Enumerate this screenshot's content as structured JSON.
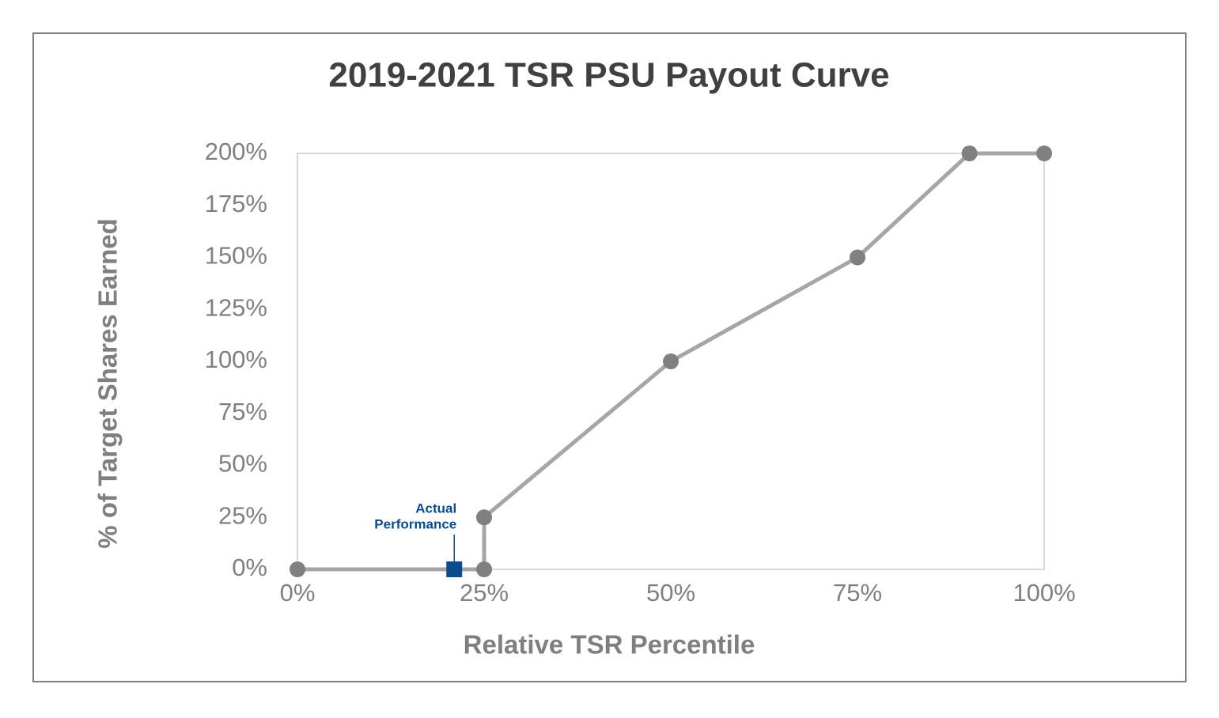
{
  "chart_data": {
    "type": "line",
    "title": "2019-2021 TSR PSU Payout Curve",
    "xlabel": "Relative TSR Percentile",
    "ylabel": "% of Target Shares Earned",
    "xlim": [
      0,
      100
    ],
    "ylim": [
      0,
      200
    ],
    "xticks": [
      {
        "value": 0,
        "label": "0%"
      },
      {
        "value": 25,
        "label": "25%"
      },
      {
        "value": 50,
        "label": "50%"
      },
      {
        "value": 75,
        "label": "75%"
      },
      {
        "value": 100,
        "label": "100%"
      }
    ],
    "yticks": [
      {
        "value": 0,
        "label": "0%"
      },
      {
        "value": 25,
        "label": "25%"
      },
      {
        "value": 50,
        "label": "50%"
      },
      {
        "value": 75,
        "label": "75%"
      },
      {
        "value": 100,
        "label": "100%"
      },
      {
        "value": 125,
        "label": "125%"
      },
      {
        "value": 150,
        "label": "150%"
      },
      {
        "value": 175,
        "label": "175%"
      },
      {
        "value": 200,
        "label": "200%"
      }
    ],
    "grid": false,
    "series": [
      {
        "color": "#a6a6a6",
        "marker_color": "#808080",
        "x": [
          0,
          25,
          25,
          50,
          75,
          90,
          100
        ],
        "values": [
          0,
          0,
          25,
          100,
          150,
          200,
          200
        ]
      }
    ],
    "annotation": {
      "text": [
        "Actual",
        "Performance"
      ],
      "x": 21,
      "y": 0,
      "color": "#0b4a8b"
    }
  }
}
